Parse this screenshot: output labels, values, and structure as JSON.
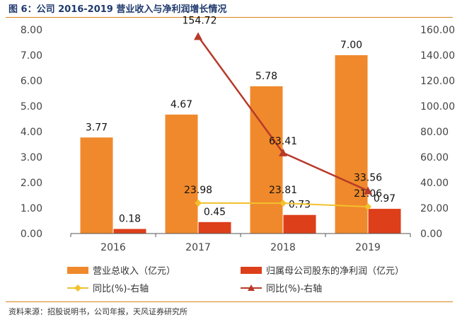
{
  "header": {
    "title": "图 6：公司 2016-2019 营业收入与净利润增长情况"
  },
  "footer": {
    "source": "资料来源：招股说明书，公司年报，天风证券研究所"
  },
  "colors": {
    "revenue": "#f0892b",
    "profit": "#dd3f1a",
    "yoy_profit": "#f2c12e",
    "yoy_revenue": "#b73a2a",
    "axis": "#555555"
  },
  "chart_data": {
    "type": "bar",
    "categories": [
      "2016",
      "2017",
      "2018",
      "2019"
    ],
    "ylim_left": [
      0,
      8
    ],
    "yticks_left": [
      "0.00",
      "1.00",
      "2.00",
      "3.00",
      "4.00",
      "5.00",
      "6.00",
      "7.00",
      "8.00"
    ],
    "ylim_right": [
      0,
      160
    ],
    "yticks_right": [
      "0.00",
      "20.00",
      "40.00",
      "60.00",
      "80.00",
      "100.00",
      "120.00",
      "140.00",
      "160.00"
    ],
    "bars": [
      {
        "name": "营业总收入（亿元）",
        "values": [
          3.77,
          4.67,
          5.78,
          7.0
        ],
        "labels": [
          "3.77",
          "4.67",
          "5.78",
          "7.00"
        ]
      },
      {
        "name": "归属母公司股东的净利润（亿元）",
        "values": [
          0.18,
          0.45,
          0.73,
          0.97
        ],
        "labels": [
          "0.18",
          "0.45",
          "0.73",
          "0.97"
        ]
      }
    ],
    "lines": [
      {
        "name": "同比(%)-右轴",
        "marker": "diamond",
        "axis": "right",
        "values": [
          null,
          23.98,
          23.81,
          21.06
        ],
        "labels": [
          "",
          "23.98",
          "23.81",
          "21.06"
        ]
      },
      {
        "name": "同比(%)-右轴",
        "marker": "triangle",
        "axis": "right",
        "values": [
          null,
          154.72,
          63.41,
          33.56
        ],
        "labels": [
          "",
          "154.72",
          "63.41",
          "33.56"
        ]
      }
    ]
  }
}
